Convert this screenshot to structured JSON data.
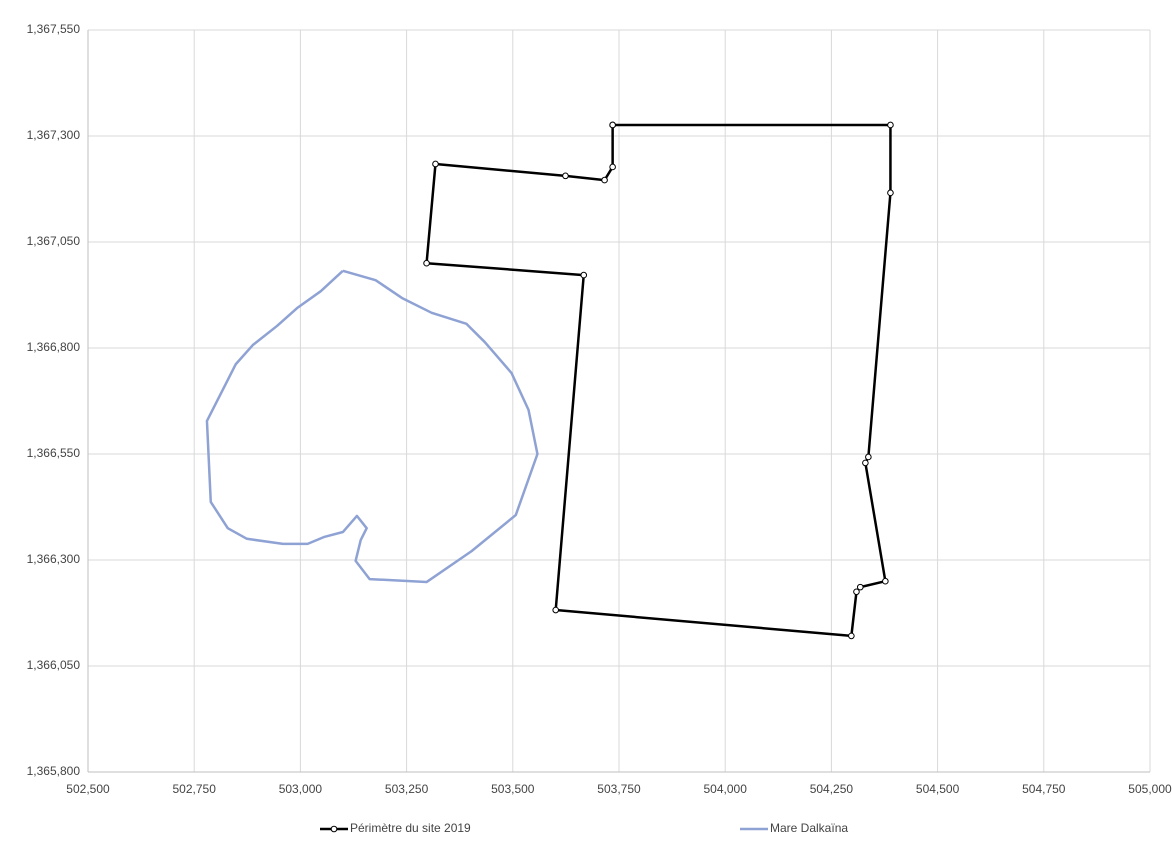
{
  "chart_data": {
    "type": "scatter",
    "xlim": [
      502500,
      505000
    ],
    "ylim": [
      1365800,
      1367550
    ],
    "xticks": [
      {
        "value": 502500,
        "label": "502,500"
      },
      {
        "value": 502750,
        "label": "502,750"
      },
      {
        "value": 503000,
        "label": "503,000"
      },
      {
        "value": 503250,
        "label": "503,250"
      },
      {
        "value": 503500,
        "label": "503,500"
      },
      {
        "value": 503750,
        "label": "503,750"
      },
      {
        "value": 504000,
        "label": "504,000"
      },
      {
        "value": 504250,
        "label": "504,250"
      },
      {
        "value": 504500,
        "label": "504,500"
      },
      {
        "value": 504750,
        "label": "504,750"
      },
      {
        "value": 505000,
        "label": "505,000"
      }
    ],
    "yticks": [
      {
        "value": 1365800,
        "label": "1,365,800"
      },
      {
        "value": 1366050,
        "label": "1,366,050"
      },
      {
        "value": 1366300,
        "label": "1,366,300"
      },
      {
        "value": 1366550,
        "label": "1,366,550"
      },
      {
        "value": 1366800,
        "label": "1,366,800"
      },
      {
        "value": 1367050,
        "label": "1,367,050"
      },
      {
        "value": 1367300,
        "label": "1,367,300"
      },
      {
        "value": 1367550,
        "label": "1,367,550"
      }
    ],
    "grid": true,
    "legend": "bottom",
    "series": [
      {
        "name": "Périmètre du site 2019",
        "color": "#000000",
        "markers": true,
        "x": [
          503735,
          504389,
          504389,
          504337,
          504330,
          504377,
          504318,
          504309,
          504297,
          503601,
          503667,
          503297,
          503318,
          503624,
          503716,
          503735,
          503735
        ],
        "y": [
          1367326,
          1367326,
          1367166,
          1366543,
          1366529,
          1366250,
          1366236,
          1366225,
          1366121,
          1366182,
          1366972,
          1367000,
          1367234,
          1367206,
          1367196,
          1367227,
          1367326
        ]
      },
      {
        "name": "Mare Dalkaïna",
        "color": "#8fa2d4",
        "markers": false,
        "x": [
          503100,
          503177,
          503239,
          503309,
          503391,
          503434,
          503497,
          503537,
          503558,
          503507,
          503403,
          503297,
          503163,
          503130,
          503142,
          503156,
          503133,
          503100,
          503055,
          503017,
          502959,
          502874,
          502829,
          502789,
          502780,
          502848,
          502888,
          502945,
          502992,
          503048,
          503100
        ],
        "y": [
          1366982,
          1366960,
          1366918,
          1366883,
          1366857,
          1366814,
          1366741,
          1366654,
          1366550,
          1366406,
          1366321,
          1366248,
          1366255,
          1366298,
          1366347,
          1366375,
          1366404,
          1366366,
          1366354,
          1366338,
          1366338,
          1366350,
          1366375,
          1366437,
          1366628,
          1366762,
          1366807,
          1366852,
          1366894,
          1366934,
          1366982
        ]
      }
    ]
  }
}
